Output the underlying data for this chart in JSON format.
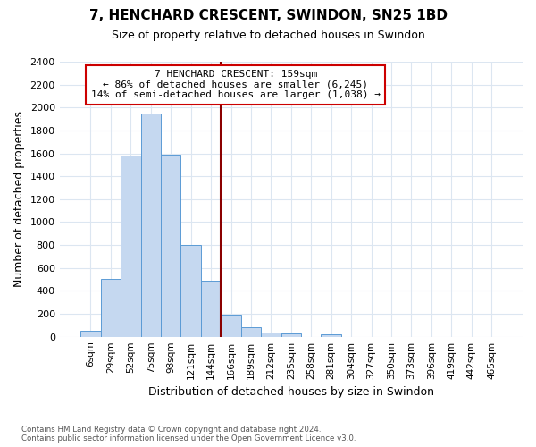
{
  "title": "7, HENCHARD CRESCENT, SWINDON, SN25 1BD",
  "subtitle": "Size of property relative to detached houses in Swindon",
  "xlabel": "Distribution of detached houses by size in Swindon",
  "ylabel": "Number of detached properties",
  "footer_line1": "Contains HM Land Registry data © Crown copyright and database right 2024.",
  "footer_line2": "Contains public sector information licensed under the Open Government Licence v3.0.",
  "bin_labels": [
    "6sqm",
    "29sqm",
    "52sqm",
    "75sqm",
    "98sqm",
    "121sqm",
    "144sqm",
    "166sqm",
    "189sqm",
    "212sqm",
    "235sqm",
    "258sqm",
    "281sqm",
    "304sqm",
    "327sqm",
    "350sqm",
    "373sqm",
    "396sqm",
    "419sqm",
    "442sqm",
    "465sqm"
  ],
  "bar_values": [
    55,
    505,
    1580,
    1950,
    1590,
    800,
    490,
    195,
    85,
    35,
    28,
    0,
    20,
    0,
    0,
    0,
    0,
    0,
    0,
    0,
    0
  ],
  "bar_color": "#c5d8f0",
  "bar_edge_color": "#5b9bd5",
  "vline_x": 6.5,
  "vline_color": "#8b0000",
  "annotation_title": "7 HENCHARD CRESCENT: 159sqm",
  "annotation_line1": "← 86% of detached houses are smaller (6,245)",
  "annotation_line2": "14% of semi-detached houses are larger (1,038) →",
  "annotation_box_color": "#ffffff",
  "annotation_box_edge": "#cc0000",
  "ylim": [
    0,
    2400
  ],
  "yticks": [
    0,
    200,
    400,
    600,
    800,
    1000,
    1200,
    1400,
    1600,
    1800,
    2000,
    2200,
    2400
  ],
  "grid_color": "#dce6f1",
  "background_color": "#ffffff"
}
